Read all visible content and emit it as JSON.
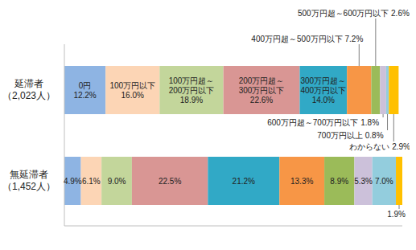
{
  "chart_data": {
    "type": "bar",
    "orientation": "horizontal",
    "stacked": true,
    "data_labels": true,
    "tick_labels": "y",
    "categories": [
      "延滞者\n（2,023人）",
      "無延滞者\n（1,452人）"
    ],
    "xlim": [
      0,
      100.1
    ],
    "series": [
      {
        "name": "0円",
        "color": "#8eb4e3",
        "values": [
          12.2,
          4.9
        ],
        "value_labels": [
          "12.2%",
          "4.9%"
        ]
      },
      {
        "name": "100万円以下",
        "color": "#fcd5b5",
        "values": [
          16.0,
          6.1
        ],
        "value_labels": [
          "16.0%",
          "6.1%"
        ]
      },
      {
        "name": "100万円超～200万円以下",
        "color": "#c3d69b",
        "values": [
          18.9,
          9.0
        ],
        "value_labels": [
          "18.9%",
          "9.0%"
        ]
      },
      {
        "name": "200万円超～300万円以下",
        "color": "#d99694",
        "values": [
          22.6,
          22.5
        ],
        "value_labels": [
          "22.6%",
          "22.5%"
        ]
      },
      {
        "name": "300万円超～400万円以下",
        "color": "#31a9c6",
        "values": [
          14.0,
          21.2
        ],
        "value_labels": [
          "14.0%",
          "21.2%"
        ]
      },
      {
        "name": "400万円超～500万円以下",
        "color": "#f79646",
        "values": [
          7.2,
          13.3
        ],
        "value_labels": [
          "7.2%",
          "13.3%"
        ]
      },
      {
        "name": "500万円超～600万円以下",
        "color": "#9bbb59",
        "values": [
          2.6,
          8.9
        ],
        "value_labels": [
          "2.6%",
          "8.9%"
        ]
      },
      {
        "name": "600万円超～700万円以下",
        "color": "#ccc1da",
        "values": [
          1.8,
          5.3
        ],
        "value_labels": [
          "1.8%",
          "5.3%"
        ]
      },
      {
        "name": "700万円以上",
        "color": "#93cddd",
        "values": [
          0.8,
          7.0
        ],
        "value_labels": [
          "0.8%",
          "7.0%"
        ]
      },
      {
        "name": "わからない",
        "color": "#ffc000",
        "values": [
          2.9,
          1.9
        ],
        "value_labels": [
          "2.9%",
          "1.9%"
        ]
      }
    ]
  }
}
